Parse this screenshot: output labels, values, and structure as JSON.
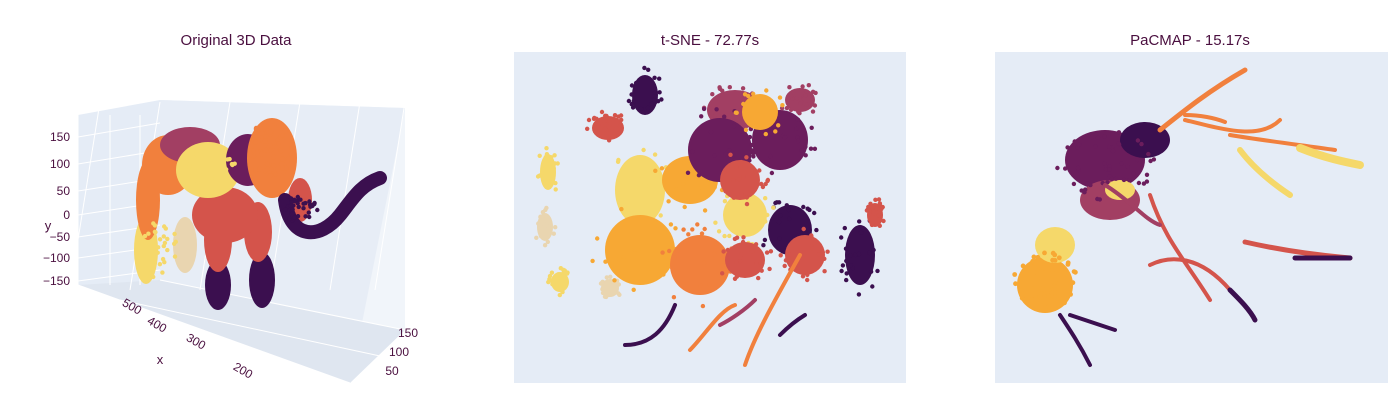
{
  "colors": {
    "panel_bg": "#e5ecf6",
    "grid": "#ffffff",
    "text": "#4a0f3f",
    "palette": [
      "#3b0f4f",
      "#6b1d5c",
      "#a23f63",
      "#d4544b",
      "#f1803d",
      "#f7a834",
      "#f5d86a",
      "#e9d5b0"
    ]
  },
  "chart_data": [
    {
      "type": "scatter",
      "projection": "3d",
      "title": "Original 3D Data",
      "axes": {
        "x": {
          "label": "x",
          "ticks": [
            "500",
            "400",
            "300",
            "200"
          ]
        },
        "y": {
          "label": "y",
          "ticks": [
            "150",
            "100",
            "50",
            "0",
            "−50",
            "−100",
            "−150"
          ]
        },
        "z": {
          "label": "",
          "ticks": [
            "150",
            "100",
            "50"
          ]
        }
      },
      "grid": true,
      "color_scale": "inferno-like"
    },
    {
      "type": "scatter",
      "title": "t-SNE - 72.77s",
      "axes": {
        "x": {
          "label": ""
        },
        "y": {
          "label": ""
        }
      },
      "grid": false,
      "color_scale": "inferno-like"
    },
    {
      "type": "scatter",
      "title": "PaCMAP - 15.17s",
      "axes": {
        "x": {
          "label": ""
        },
        "y": {
          "label": ""
        }
      },
      "grid": false,
      "color_scale": "inferno-like"
    }
  ]
}
